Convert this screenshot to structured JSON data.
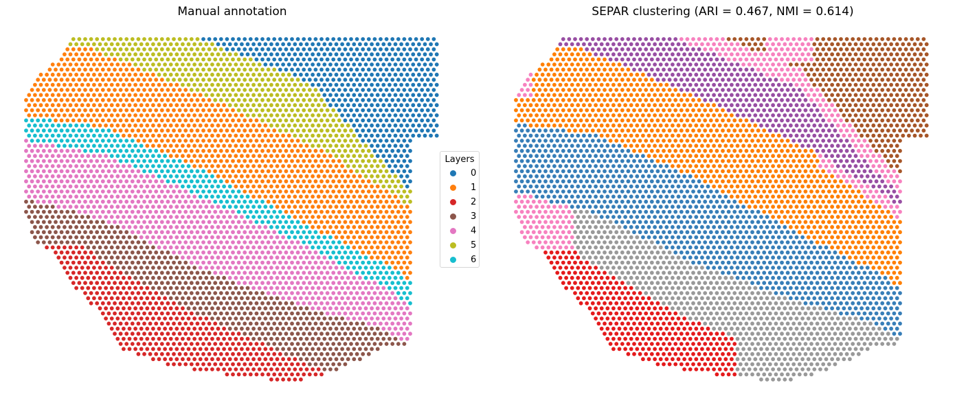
{
  "chart_data": [
    {
      "type": "scatter",
      "title": "Manual annotation",
      "grid": false,
      "axes_visible": false,
      "legend": {
        "title": "Layers",
        "placement": "right of left panel",
        "entries": [
          {
            "label": "0",
            "color": "#1f77b4"
          },
          {
            "label": "1",
            "color": "#ff7f0e"
          },
          {
            "label": "2",
            "color": "#d62728"
          },
          {
            "label": "3",
            "color": "#8c564b"
          },
          {
            "label": "4",
            "color": "#e377c2"
          },
          {
            "label": "5",
            "color": "#bcbd22"
          },
          {
            "label": "6",
            "color": "#17becf"
          }
        ]
      },
      "layers_order_top_to_bottom": [
        "0",
        "5",
        "1",
        "6",
        "4",
        "3",
        "2"
      ]
    },
    {
      "type": "scatter",
      "title": "SEPAR clustering (ARI = 0.467, NMI = 0.614)",
      "grid": false,
      "axes_visible": false,
      "cluster_colors": {
        "purple": "#984ea3",
        "pink": "#f781bf",
        "brown": "#a65628",
        "orange": "#ff7f00",
        "blue": "#377eb8",
        "grey": "#999999",
        "red": "#e41a1c"
      },
      "layers_order_top_to_bottom": [
        "brown",
        "purple",
        "orange",
        "blue",
        "grey",
        "red"
      ]
    }
  ]
}
